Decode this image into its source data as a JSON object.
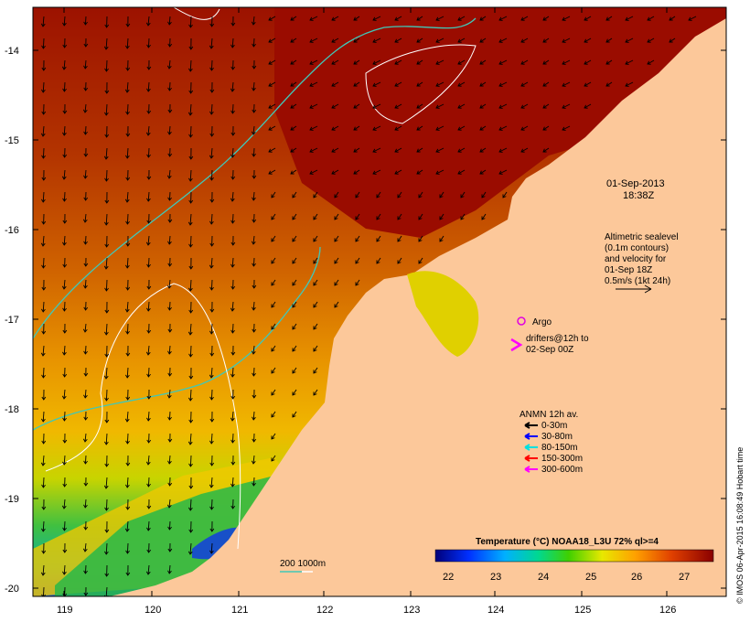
{
  "map": {
    "lat_ticks": [
      "-14",
      "-15",
      "-16",
      "-17",
      "-18",
      "-19",
      "-20"
    ],
    "lon_ticks": [
      "119",
      "120",
      "121",
      "122",
      "123",
      "124",
      "125",
      "126"
    ],
    "date": "01-Sep-2013",
    "time": "18:38Z",
    "altimetry_lines": [
      "Altimetric sealevel",
      "(0.1m contours)",
      "and velocity for",
      "01-Sep 18Z",
      "0.5m/s (1kt 24h)"
    ],
    "argo_label": "Argo",
    "drifters_lines": [
      "drifters@12h to",
      "02-Sep 00Z"
    ],
    "anmn": {
      "title": "ANMN 12h av.",
      "items": [
        {
          "label": "0-30m",
          "color": "#000000"
        },
        {
          "label": "30-80m",
          "color": "#0000ff"
        },
        {
          "label": "80-150m",
          "color": "#00e0e0"
        },
        {
          "label": "150-300m",
          "color": "#ff0000"
        },
        {
          "label": "300-600m",
          "color": "#ff00ff"
        }
      ]
    },
    "scale_label": "200  1000m",
    "colorbar": {
      "title": "Temperature (°C) NOAA18_L3U 72% ql>=4",
      "ticks": [
        "22",
        "23",
        "24",
        "25",
        "26",
        "27"
      ]
    },
    "credit": "© IMOS 06-Apr-2015 16:08:49 Hobart time",
    "colors": {
      "land": "#fcc89a",
      "warm": "#9a0c00",
      "orange": "#e88a00",
      "isobath_200": "#40c8b8",
      "isobath_1000": "#ffffff"
    }
  }
}
